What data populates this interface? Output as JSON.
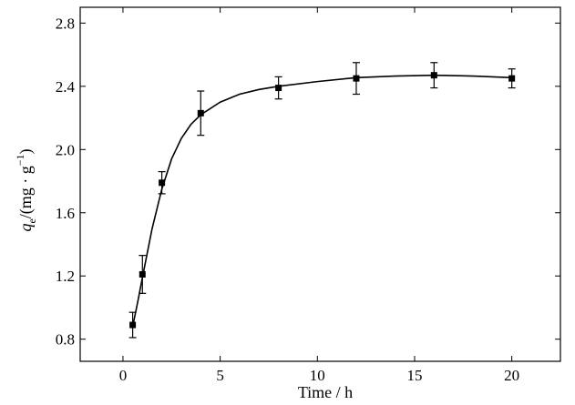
{
  "chart_data": {
    "type": "scatter",
    "title": "",
    "xlabel": "Time / h",
    "ylabel": {
      "symbol": "q",
      "subscript": "e",
      "unit_open": "/(mg · g",
      "superscript": "−1",
      "unit_close": ")"
    },
    "xlim": [
      -2.2,
      22.5
    ],
    "ylim": [
      0.66,
      2.9
    ],
    "xticks": [
      0,
      5,
      10,
      15,
      20
    ],
    "xtick_labels": [
      "0",
      "5",
      "10",
      "15",
      "20"
    ],
    "yticks": [
      0.8,
      1.2,
      1.6,
      2.0,
      2.4,
      2.8
    ],
    "ytick_labels": [
      "0.8",
      "1.2",
      "1.6",
      "2.0",
      "2.4",
      "2.8"
    ],
    "grid": false,
    "legend": "none",
    "series": [
      {
        "marker": "square",
        "x": [
          0.5,
          1,
          2,
          4,
          8,
          12,
          16,
          20
        ],
        "y": [
          0.89,
          1.21,
          1.79,
          2.23,
          2.39,
          2.45,
          2.47,
          2.45
        ],
        "error": [
          0.08,
          0.12,
          0.07,
          0.14,
          0.07,
          0.1,
          0.08,
          0.06
        ]
      }
    ],
    "fit_curve": {
      "x": [
        0.5,
        0.75,
        1,
        1.5,
        2,
        2.5,
        3,
        3.5,
        4,
        5,
        6,
        7,
        8,
        10,
        12,
        14,
        16,
        18,
        20
      ],
      "y": [
        0.88,
        1.03,
        1.19,
        1.5,
        1.75,
        1.94,
        2.07,
        2.16,
        2.22,
        2.3,
        2.35,
        2.38,
        2.4,
        2.43,
        2.455,
        2.465,
        2.47,
        2.465,
        2.455
      ]
    }
  }
}
